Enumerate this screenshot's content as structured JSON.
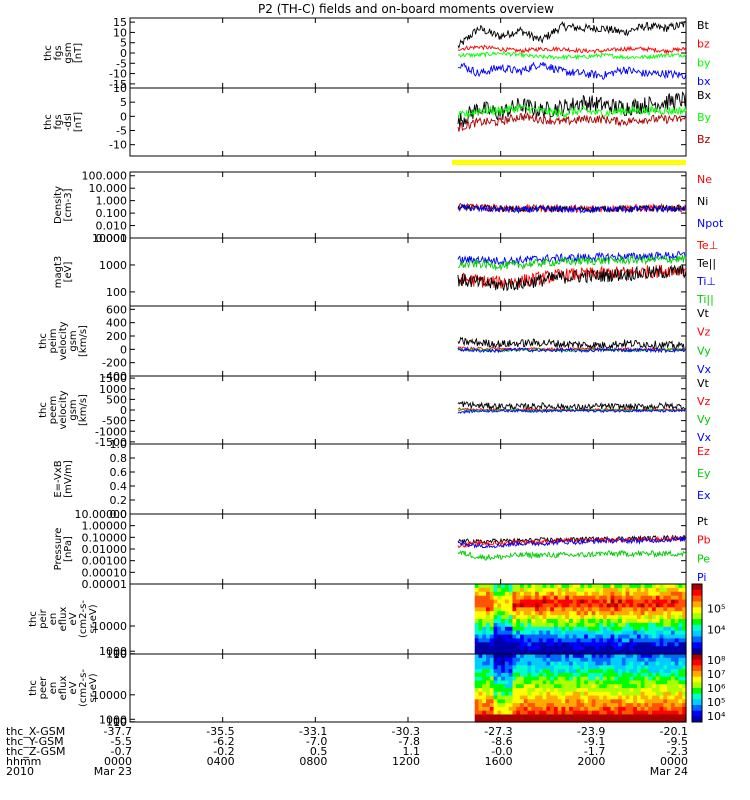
{
  "title": "P2 (TH-C) fields and on-board moments overview",
  "chart_data": [
    {
      "type": "line",
      "id": "fgs_gsm",
      "ylabel_lines": [
        "thc",
        "fgs",
        "gsm",
        "[nT]"
      ],
      "ylim": [
        -17,
        17
      ],
      "yticks": [
        15,
        10,
        5,
        0,
        -5,
        -10,
        -15
      ],
      "ytick_labels": [
        "15",
        "10",
        "5",
        "0",
        "-5",
        "-10",
        "-15"
      ],
      "series": [
        {
          "name": "Bt",
          "color": "#000000",
          "base": [
            3,
            12,
            8,
            11,
            6,
            13,
            12,
            12,
            10,
            13,
            12,
            14
          ],
          "noise": 2.0
        },
        {
          "name": "bz",
          "color": "#ff0000",
          "base": [
            2,
            3,
            2,
            1,
            2,
            2,
            1,
            1,
            2,
            2,
            1,
            2
          ],
          "noise": 1.0
        },
        {
          "name": "by",
          "color": "#00ff00",
          "base": [
            -1,
            -1,
            0,
            -1,
            -2,
            -2,
            -2,
            -1,
            -2,
            -2,
            -1,
            -1
          ],
          "noise": 1.0
        },
        {
          "name": "bx",
          "color": "#0000ff",
          "base": [
            -5,
            -10,
            -7,
            -9,
            -5,
            -9,
            -10,
            -11,
            -8,
            -10,
            -10,
            -11
          ],
          "noise": 2.0
        }
      ]
    },
    {
      "type": "line",
      "id": "fgs_gse",
      "ylabel_lines": [
        "thc",
        "fgs",
        "-dsl",
        "[nT]"
      ],
      "ylim": [
        -14,
        10
      ],
      "yticks": [
        10,
        5,
        0,
        -5,
        -10
      ],
      "ytick_labels": [
        "10",
        "5",
        "0",
        "-5",
        "-10"
      ],
      "series": [
        {
          "name": "Bx",
          "color": "#000000",
          "base": [
            -2,
            3,
            1,
            4,
            2,
            3,
            5,
            4,
            3,
            4,
            5,
            6
          ],
          "noise": 3.0
        },
        {
          "name": "By",
          "color": "#00ff00",
          "base": [
            0,
            2,
            2,
            3,
            2,
            1,
            2,
            1,
            2,
            2,
            2,
            2
          ],
          "noise": 1.5
        },
        {
          "name": "Bz",
          "color": "#aa0000",
          "base": [
            -4,
            -2,
            -2,
            0,
            -1,
            -2,
            -1,
            -1,
            -2,
            -1,
            -1,
            -1
          ],
          "noise": 1.5
        }
      ]
    },
    {
      "type": "line",
      "id": "density",
      "log": true,
      "ylabel_lines": [
        "Density",
        "[cm-3]"
      ],
      "ylim": [
        0.001,
        200
      ],
      "yticks": [
        100,
        10,
        1,
        0.1,
        0.01,
        0.001
      ],
      "ytick_labels": [
        "100.000",
        "10.000",
        "1.000",
        "0.100",
        "0.010",
        "0.001"
      ],
      "series": [
        {
          "name": "Ne",
          "color": "#ff0000",
          "base": [
            0.4,
            0.28,
            0.25,
            0.22,
            0.25,
            0.24,
            0.22,
            0.24,
            0.25,
            0.25,
            0.25,
            0.26
          ],
          "noise": 0.3
        },
        {
          "name": "Ni",
          "color": "#000000",
          "base": [
            0.3,
            0.26,
            0.24,
            0.2,
            0.22,
            0.22,
            0.2,
            0.22,
            0.23,
            0.23,
            0.24,
            0.24
          ],
          "noise": 0.25
        },
        {
          "name": "Npot",
          "color": "#0000ff",
          "base": [
            0.3,
            0.22,
            0.2,
            0.18,
            0.2,
            0.2,
            0.18,
            0.2,
            0.2,
            0.21,
            0.21,
            0.22
          ],
          "noise": 0.25
        }
      ]
    },
    {
      "type": "line",
      "id": "temperature",
      "log": true,
      "ylabel_lines": [
        "magt3",
        "[eV]"
      ],
      "ylim": [
        30,
        10000
      ],
      "yticks": [
        10000,
        1000,
        100
      ],
      "ytick_labels": [
        "10000",
        "1000",
        "100"
      ],
      "series": [
        {
          "name": "Te⊥",
          "color": "#ff0000",
          "base": [
            300,
            260,
            220,
            250,
            320,
            420,
            450,
            480,
            520,
            550,
            620,
            680
          ],
          "noise": 0.25
        },
        {
          "name": "Te||",
          "color": "#000000",
          "base": [
            280,
            220,
            180,
            200,
            270,
            350,
            380,
            400,
            450,
            480,
            540,
            600
          ],
          "noise": 0.25
        },
        {
          "name": "Ti⊥",
          "color": "#0000ff",
          "base": [
            1500,
            1600,
            1400,
            1500,
            1700,
            1800,
            1900,
            2000,
            2000,
            2100,
            2200,
            2300
          ],
          "noise": 0.15
        },
        {
          "name": "Ti||",
          "color": "#00cc00",
          "base": [
            1000,
            1100,
            950,
            1000,
            1200,
            1300,
            1400,
            1450,
            1500,
            1550,
            1600,
            1700
          ],
          "noise": 0.15
        }
      ]
    },
    {
      "type": "line",
      "id": "peim_velocity",
      "ylabel_lines": [
        "thc",
        "peim",
        "velocity",
        "gsm",
        "[km/s]"
      ],
      "ylim": [
        -400,
        650
      ],
      "yticks": [
        600,
        400,
        200,
        0,
        -200,
        -400
      ],
      "ytick_labels": [
        "600",
        "400",
        "200",
        "0",
        "-200",
        "-400"
      ],
      "series": [
        {
          "name": "Vt",
          "color": "#000000",
          "base": [
            120,
            100,
            80,
            90,
            100,
            80,
            70,
            60,
            90,
            80,
            60,
            50
          ],
          "noise": 60
        },
        {
          "name": "Vz",
          "color": "#ff0000",
          "base": [
            20,
            10,
            10,
            0,
            10,
            0,
            10,
            0,
            5,
            0,
            0,
            0
          ],
          "noise": 20
        },
        {
          "name": "Vy",
          "color": "#00cc00",
          "base": [
            0,
            -10,
            -20,
            -10,
            0,
            -20,
            -10,
            0,
            -20,
            -10,
            0,
            -10
          ],
          "noise": 20
        },
        {
          "name": "Vx",
          "color": "#0000ff",
          "base": [
            0,
            -20,
            -20,
            0,
            -20,
            -10,
            -20,
            -10,
            -10,
            -10,
            -20,
            -10
          ],
          "noise": 25
        }
      ]
    },
    {
      "type": "line",
      "id": "peem_velocity",
      "ylabel_lines": [
        "thc",
        "peem",
        "velocity",
        "gsm",
        "[km/s]"
      ],
      "ylim": [
        -1600,
        1600
      ],
      "yticks": [
        1500,
        1000,
        500,
        0,
        -500,
        -1000,
        -1500
      ],
      "ytick_labels": [
        "1500",
        "1000",
        "500",
        "0",
        "-500",
        "-1000",
        "-1500"
      ],
      "series": [
        {
          "name": "Vt",
          "color": "#000000",
          "base": [
            300,
            200,
            180,
            150,
            200,
            150,
            120,
            180,
            150,
            150,
            200,
            150
          ],
          "noise": 150
        },
        {
          "name": "Vz",
          "color": "#ff0000",
          "base": [
            50,
            20,
            10,
            10,
            20,
            0,
            10,
            20,
            0,
            10,
            20,
            0
          ],
          "noise": 50
        },
        {
          "name": "Vy",
          "color": "#00cc00",
          "base": [
            0,
            -20,
            -10,
            0,
            -20,
            0,
            -10,
            0,
            -10,
            0,
            -10,
            0
          ],
          "noise": 40
        },
        {
          "name": "Vx",
          "color": "#0000ff",
          "base": [
            -100,
            -50,
            -40,
            -30,
            -60,
            -40,
            -30,
            -50,
            -40,
            -30,
            -50,
            -40
          ],
          "noise": 60
        }
      ]
    },
    {
      "type": "line",
      "id": "efield",
      "ylabel_lines": [
        "E=-VxB",
        "[mV/m]"
      ],
      "ylim": [
        0,
        1
      ],
      "yticks": [
        1.0,
        0.8,
        0.6,
        0.4,
        0.2,
        0.0
      ],
      "ytick_labels": [
        "1.0",
        "0.8",
        "0.6",
        "0.4",
        "0.2",
        "0.0"
      ],
      "series": [
        {
          "name": "Ez",
          "color": "#ff0000"
        },
        {
          "name": "Ey",
          "color": "#00cc00"
        },
        {
          "name": "Ex",
          "color": "#0000ff"
        }
      ]
    },
    {
      "type": "line",
      "id": "pressure",
      "log": true,
      "ylabel_lines": [
        "Pressure",
        "[nPa]"
      ],
      "ylim": [
        1e-05,
        10
      ],
      "yticks": [
        10,
        1,
        0.1,
        0.01,
        0.001,
        0.0001,
        1e-05
      ],
      "ytick_labels": [
        "10.00000",
        "1.00000",
        "0.10000",
        "0.01000",
        "0.00100",
        "0.00010",
        "0.00001"
      ],
      "series": [
        {
          "name": "Pt",
          "color": "#000000",
          "base": [
            0.05,
            0.04,
            0.05,
            0.05,
            0.06,
            0.06,
            0.07,
            0.07,
            0.08,
            0.08,
            0.09,
            0.1
          ],
          "noise": 0.2
        },
        {
          "name": "Pb",
          "color": "#ff0000",
          "base": [
            0.02,
            0.03,
            0.03,
            0.04,
            0.04,
            0.05,
            0.05,
            0.06,
            0.06,
            0.06,
            0.07,
            0.08
          ],
          "noise": 0.2
        },
        {
          "name": "Pe",
          "color": "#00cc00",
          "base": [
            0.005,
            0.002,
            0.002,
            0.003,
            0.003,
            0.003,
            0.003,
            0.004,
            0.004,
            0.004,
            0.004,
            0.004
          ],
          "noise": 0.25
        },
        {
          "name": "Pi",
          "color": "#0000ff",
          "base": [
            0.03,
            0.02,
            0.02,
            0.03,
            0.03,
            0.04,
            0.04,
            0.05,
            0.05,
            0.05,
            0.06,
            0.07
          ],
          "noise": 0.2
        }
      ]
    },
    {
      "type": "heatmap",
      "id": "peir_spectrogram",
      "ylabel_lines": [
        "thc",
        "peir",
        "en",
        "eflux",
        "eV",
        "(cm2-s-",
        "sr-eV)"
      ],
      "ylim": [
        5,
        25000
      ],
      "yticks": [
        10000,
        1000,
        100,
        10
      ],
      "ytick_labels": [
        "10000",
        "1000",
        "100",
        "10"
      ],
      "colorbar_labels": [
        "10⁵",
        "10⁴"
      ],
      "colorbar_values": [
        100000,
        10000
      ]
    },
    {
      "type": "heatmap",
      "id": "peer_spectrogram",
      "ylabel_lines": [
        "thc",
        "peer",
        "en",
        "eflux",
        "eV",
        "(cm2-s-",
        "sr-eV)"
      ],
      "ylim": [
        7,
        25000
      ],
      "yticks": [
        10000,
        1000,
        100,
        10
      ],
      "ytick_labels": [
        "10000",
        "1000",
        "100",
        "10"
      ],
      "colorbar_labels": [
        "10⁸",
        "10⁷",
        "10⁶",
        "10⁵",
        "10⁴"
      ],
      "colorbar_values": [
        100000000,
        10000000,
        1000000,
        100000,
        10000
      ]
    }
  ],
  "time_axis": {
    "data_start_fraction": 0.59,
    "spectro_start_fraction": 0.62,
    "row_labels": [
      "thc_X-GSM",
      "thc_Y-GSM",
      "thc_Z-GSM",
      "hhmm",
      "2010"
    ],
    "columns": [
      {
        "values": [
          "-37.7",
          "-5.5",
          "-0.7",
          "0000",
          "Mar 23"
        ]
      },
      {
        "values": [
          "-35.5",
          "-6.2",
          "-0.2",
          "0400",
          ""
        ]
      },
      {
        "values": [
          "-33.1",
          "-7.0",
          "0.5",
          "0800",
          ""
        ]
      },
      {
        "values": [
          "-30.3",
          "-7.8",
          "1.1",
          "1200",
          ""
        ]
      },
      {
        "values": [
          "-27.3",
          "-8.6",
          "-0.0",
          "1600",
          ""
        ]
      },
      {
        "values": [
          "-23.9",
          "-9.1",
          "-1.7",
          "2000",
          ""
        ]
      },
      {
        "values": [
          "-20.1",
          "-9.5",
          "-2.3",
          "0000",
          "Mar 24"
        ]
      }
    ]
  },
  "mode_bar_color": "#ffff00"
}
